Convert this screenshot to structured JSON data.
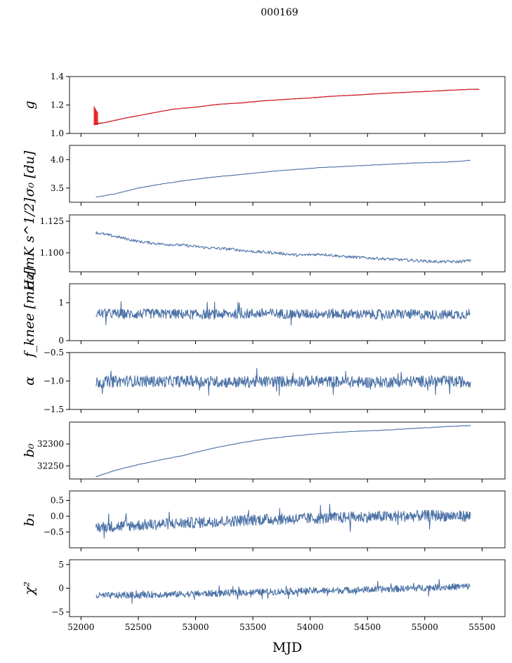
{
  "figure": {
    "title": "000169",
    "xlabel": "MJD"
  },
  "colors": {
    "series": "#4c72a6",
    "overlay": "#e8181a"
  },
  "chart_data": [
    {
      "type": "line",
      "id": "g",
      "ylabel": "g",
      "xlim": [
        51900,
        55700
      ],
      "ylim": [
        1.0,
        1.4
      ],
      "yticks": [
        1.0,
        1.2,
        1.4
      ],
      "yticklabels": [
        "1.0",
        "1.2",
        "1.4"
      ],
      "series": [
        {
          "x": [
            52110,
            52200,
            52400,
            52600,
            52800,
            53000,
            53200,
            53400,
            53600,
            53800,
            54000,
            54200,
            54400,
            54600,
            54800,
            55000,
            55200,
            55400,
            55480
          ],
          "y": [
            1.06,
            1.075,
            1.11,
            1.14,
            1.17,
            1.185,
            1.205,
            1.215,
            1.23,
            1.24,
            1.25,
            1.262,
            1.27,
            1.28,
            1.288,
            1.295,
            1.303,
            1.31,
            1.31
          ]
        },
        {
          "x": [
            52110,
            52200,
            52400,
            52600,
            52800,
            53000,
            53200,
            53400,
            53600,
            53800,
            54000,
            54200,
            54400,
            54600,
            54800,
            55000,
            55200,
            55400,
            55480
          ],
          "y": [
            1.07,
            1.075,
            1.11,
            1.14,
            1.17,
            1.185,
            1.205,
            1.215,
            1.23,
            1.24,
            1.25,
            1.262,
            1.27,
            1.28,
            1.288,
            1.295,
            1.303,
            1.31,
            1.31
          ],
          "spike": {
            "x": 52130,
            "ymin": 1.06,
            "ymax": 1.19
          }
        }
      ]
    },
    {
      "type": "line",
      "id": "sigma0-du",
      "ylabel": "σ₀ [du]",
      "xlim": [
        51900,
        55700
      ],
      "ylim": [
        3.25,
        4.25
      ],
      "yticks": [
        3.5,
        4.0
      ],
      "yticklabels": [
        "3.5",
        "4.0"
      ],
      "series": [
        {
          "x": [
            52130,
            52300,
            52500,
            52700,
            52900,
            53100,
            53300,
            53500,
            53700,
            53900,
            54100,
            54300,
            54500,
            54700,
            54900,
            55100,
            55300,
            55400
          ],
          "y": [
            3.34,
            3.4,
            3.5,
            3.57,
            3.63,
            3.68,
            3.72,
            3.76,
            3.8,
            3.83,
            3.86,
            3.88,
            3.9,
            3.92,
            3.94,
            3.95,
            3.97,
            3.99
          ]
        }
      ]
    },
    {
      "type": "line",
      "id": "sigma0-mk",
      "ylabel": "σ₀[mK s^1/2]",
      "xlim": [
        51900,
        55700
      ],
      "ylim": [
        1.085,
        1.13
      ],
      "yticks": [
        1.1,
        1.125
      ],
      "yticklabels": [
        "1.100",
        "1.125"
      ],
      "series": [
        {
          "x": [
            52130,
            52300,
            52500,
            52700,
            52900,
            53100,
            53300,
            53500,
            53700,
            53900,
            54100,
            54300,
            54500,
            54700,
            54900,
            55100,
            55300,
            55400
          ],
          "y": [
            1.116,
            1.113,
            1.109,
            1.107,
            1.106,
            1.104,
            1.103,
            1.101,
            1.1,
            1.098,
            1.099,
            1.097,
            1.096,
            1.095,
            1.094,
            1.093,
            1.093,
            1.094
          ]
        }
      ]
    },
    {
      "type": "line",
      "id": "fknee",
      "ylabel": "f_knee [mHz]",
      "xlim": [
        51900,
        55700
      ],
      "ylim": [
        0,
        1.5
      ],
      "yticks": [
        0,
        1
      ],
      "yticklabels": [
        "0",
        "1"
      ],
      "series": [
        {
          "x": [
            52130,
            52400,
            52700,
            53000,
            53300,
            53600,
            53900,
            54200,
            54500,
            54800,
            55100,
            55400
          ],
          "y": [
            0.72,
            0.7,
            0.71,
            0.69,
            0.7,
            0.72,
            0.7,
            0.71,
            0.69,
            0.7,
            0.68,
            0.7
          ],
          "noise": 0.13
        }
      ]
    },
    {
      "type": "line",
      "id": "alpha",
      "ylabel": "α",
      "xlim": [
        51900,
        55700
      ],
      "ylim": [
        -1.5,
        -0.5
      ],
      "yticks": [
        -1.5,
        -1.0,
        -0.5
      ],
      "yticklabels": [
        "−1.5",
        "−1.0",
        "−0.5"
      ],
      "series": [
        {
          "x": [
            52130,
            52400,
            52700,
            53000,
            53300,
            53600,
            53900,
            54200,
            54500,
            54800,
            55100,
            55400
          ],
          "y": [
            -1.02,
            -1.0,
            -1.01,
            -1.0,
            -1.02,
            -1.01,
            -1.0,
            -1.01,
            -1.02,
            -1.01,
            -1.0,
            -1.02
          ],
          "noise": 0.1
        }
      ]
    },
    {
      "type": "line",
      "id": "b0",
      "ylabel": "b₀",
      "xlim": [
        51900,
        55700
      ],
      "ylim": [
        32220,
        32350
      ],
      "yticks": [
        32250,
        32300
      ],
      "yticklabels": [
        "32250",
        "32300"
      ],
      "series": [
        {
          "x": [
            52130,
            52300,
            52500,
            52700,
            52900,
            53000,
            53200,
            53400,
            53600,
            53800,
            54000,
            54200,
            54400,
            54600,
            54800,
            55000,
            55200,
            55400
          ],
          "y": [
            32225,
            32240,
            32253,
            32264,
            32274,
            32281,
            32293,
            32303,
            32311,
            32317,
            32322,
            32326,
            32329,
            32331,
            32334,
            32337,
            32340,
            32342
          ]
        }
      ]
    },
    {
      "type": "line",
      "id": "b1",
      "ylabel": "b₁",
      "xlim": [
        51900,
        55700
      ],
      "ylim": [
        -1.0,
        0.8
      ],
      "yticks": [
        -0.5,
        0.0,
        0.5
      ],
      "yticklabels": [
        "−0.5",
        "0.0",
        "0.5"
      ],
      "series": [
        {
          "x": [
            52130,
            52400,
            52700,
            53000,
            53300,
            53600,
            53900,
            54200,
            54500,
            54800,
            55100,
            55400
          ],
          "y": [
            -0.35,
            -0.3,
            -0.25,
            -0.2,
            -0.15,
            -0.1,
            -0.08,
            -0.05,
            -0.02,
            0.0,
            0.02,
            0.0
          ],
          "noise": 0.18
        }
      ]
    },
    {
      "type": "line",
      "id": "chi2",
      "ylabel": "χ²",
      "xlim": [
        51900,
        55700
      ],
      "ylim": [
        -6,
        6
      ],
      "yticks": [
        -5,
        0,
        5
      ],
      "yticklabels": [
        "−5",
        "0",
        "5"
      ],
      "series": [
        {
          "x": [
            52130,
            52400,
            52700,
            53000,
            53300,
            53600,
            53900,
            54200,
            54500,
            54800,
            55100,
            55400
          ],
          "y": [
            -1.6,
            -1.5,
            -1.3,
            -1.2,
            -1.0,
            -0.8,
            -0.6,
            -0.5,
            -0.3,
            -0.1,
            0.2,
            0.4
          ],
          "noise": 0.7
        }
      ]
    }
  ],
  "xaxis": {
    "ticks": [
      52000,
      52500,
      53000,
      53500,
      54000,
      54500,
      55000,
      55500
    ],
    "ticklabels": [
      "52000",
      "52500",
      "53000",
      "53500",
      "54000",
      "54500",
      "55000",
      "55500"
    ]
  }
}
